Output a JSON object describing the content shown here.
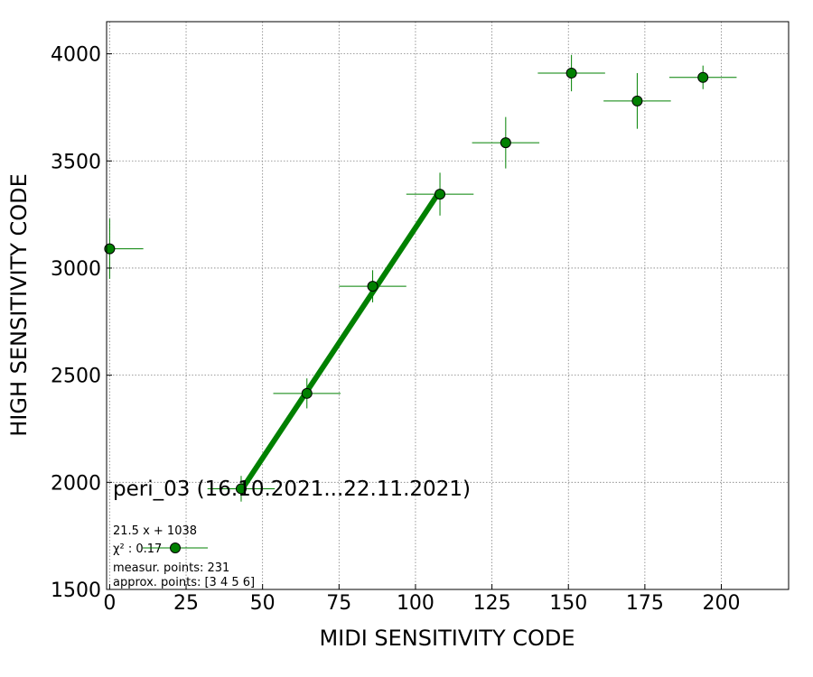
{
  "chart_data": {
    "type": "scatter",
    "title": "",
    "xlabel": "MIDI SENSITIVITY CODE",
    "ylabel": "HIGH SENSITIVITY CODE",
    "xlim": [
      -1,
      222
    ],
    "ylim": [
      1500,
      4150
    ],
    "xticks": [
      0,
      25,
      50,
      75,
      100,
      125,
      150,
      175,
      200
    ],
    "yticks": [
      1500,
      2000,
      2500,
      3000,
      3500,
      4000
    ],
    "xtick_labels": [
      "0",
      "25",
      "50",
      "75",
      "100",
      "125",
      "150",
      "175",
      "200"
    ],
    "ytick_labels": [
      "1500",
      "2000",
      "2500",
      "3000",
      "3500",
      "4000"
    ],
    "grid": true,
    "colors": {
      "marker_fill": "#008000",
      "marker_edge": "#000000",
      "errorbar": "#008000",
      "fit_line": "#008000"
    },
    "points": [
      {
        "x": 0,
        "y": 3090,
        "xerr": 11,
        "yerr": 140
      },
      {
        "x": 43,
        "y": 1970,
        "xerr": 11,
        "yerr": 60
      },
      {
        "x": 64.5,
        "y": 2415,
        "xerr": 11,
        "yerr": 70
      },
      {
        "x": 86,
        "y": 2915,
        "xerr": 11,
        "yerr": 75
      },
      {
        "x": 108,
        "y": 3345,
        "xerr": 11,
        "yerr": 100
      },
      {
        "x": 129.5,
        "y": 3585,
        "xerr": 11,
        "yerr": 120
      },
      {
        "x": 151,
        "y": 3910,
        "xerr": 11,
        "yerr": 85
      },
      {
        "x": 172.5,
        "y": 3780,
        "xerr": 11,
        "yerr": 130
      },
      {
        "x": 194,
        "y": 3890,
        "xerr": 11,
        "yerr": 55
      }
    ],
    "fit": {
      "slope": 21.5,
      "intercept": 1038,
      "x_range": [
        43,
        108
      ]
    },
    "annotations": {
      "label": "peri_03 (16.10.2021...22.11.2021)",
      "equation": "21.5 x + 1038",
      "chi2_label": "χ² : 0.17",
      "measur_points": "measur. points: 231",
      "approx_points": "approx. points: [3 4 5 6]"
    }
  }
}
